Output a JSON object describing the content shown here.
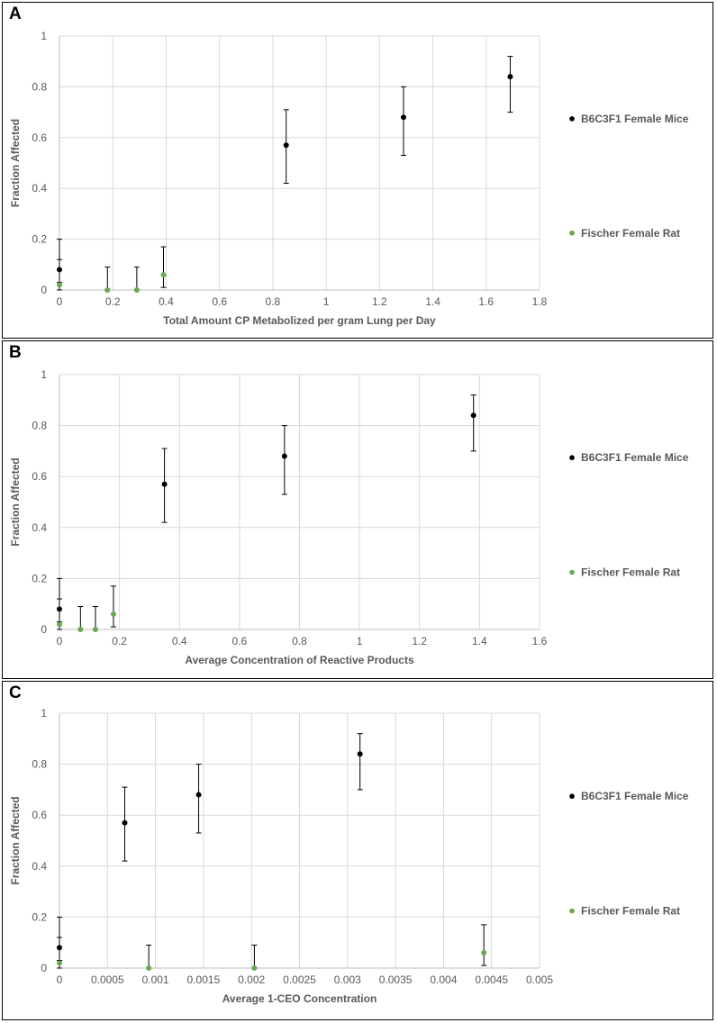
{
  "colors": {
    "mice": "#000000",
    "rat": "#6aa84f",
    "grid": "#d9d9d9",
    "axis": "#bfbfbf",
    "text": "#595959"
  },
  "chart_data": [
    {
      "panel": "A",
      "type": "scatter",
      "xlabel": "Total Amount CP Metabolized per gram Lung per Day",
      "ylabel": "Fraction Affected",
      "xlim": [
        0,
        1.8
      ],
      "ylim": [
        0,
        1
      ],
      "xticks": [
        "0",
        "0.2",
        "0.4",
        "0.6",
        "0.8",
        "1",
        "1.2",
        "1.4",
        "1.6",
        "1.8"
      ],
      "yticks": [
        "0",
        "0.2",
        "0.4",
        "0.6",
        "0.8",
        "1"
      ],
      "legend": [
        "B6C3F1 Female Mice",
        "Fischer Female Rat"
      ],
      "series": [
        {
          "name": "B6C3F1 Female Mice",
          "points": [
            {
              "x": 0,
              "y": 0.08,
              "lo": 0.03,
              "hi": 0.2
            },
            {
              "x": 0.85,
              "y": 0.57,
              "lo": 0.42,
              "hi": 0.71
            },
            {
              "x": 1.29,
              "y": 0.68,
              "lo": 0.53,
              "hi": 0.8
            },
            {
              "x": 1.69,
              "y": 0.84,
              "lo": 0.7,
              "hi": 0.92
            }
          ]
        },
        {
          "name": "Fischer Female Rat",
          "points": [
            {
              "x": 0,
              "y": 0.02,
              "lo": 0.0,
              "hi": 0.12
            },
            {
              "x": 0.18,
              "y": 0.0,
              "lo": 0.0,
              "hi": 0.09
            },
            {
              "x": 0.29,
              "y": 0.0,
              "lo": 0.0,
              "hi": 0.09
            },
            {
              "x": 0.39,
              "y": 0.06,
              "lo": 0.01,
              "hi": 0.17
            }
          ]
        }
      ]
    },
    {
      "panel": "B",
      "type": "scatter",
      "xlabel": "Average Concentration of Reactive Products",
      "ylabel": "Fraction Affected",
      "xlim": [
        0,
        1.6
      ],
      "ylim": [
        0,
        1
      ],
      "xticks": [
        "0",
        "0.2",
        "0.4",
        "0.6",
        "0.8",
        "1",
        "1.2",
        "1.4",
        "1.6"
      ],
      "yticks": [
        "0",
        "0.2",
        "0.4",
        "0.6",
        "0.8",
        "1"
      ],
      "legend": [
        "B6C3F1 Female Mice",
        "Fischer Female Rat"
      ],
      "series": [
        {
          "name": "B6C3F1 Female Mice",
          "points": [
            {
              "x": 0,
              "y": 0.08,
              "lo": 0.03,
              "hi": 0.2
            },
            {
              "x": 0.35,
              "y": 0.57,
              "lo": 0.42,
              "hi": 0.71
            },
            {
              "x": 0.75,
              "y": 0.68,
              "lo": 0.53,
              "hi": 0.8
            },
            {
              "x": 1.38,
              "y": 0.84,
              "lo": 0.7,
              "hi": 0.92
            }
          ]
        },
        {
          "name": "Fischer Female Rat",
          "points": [
            {
              "x": 0,
              "y": 0.02,
              "lo": 0.0,
              "hi": 0.12
            },
            {
              "x": 0.07,
              "y": 0.0,
              "lo": 0.0,
              "hi": 0.09
            },
            {
              "x": 0.12,
              "y": 0.0,
              "lo": 0.0,
              "hi": 0.09
            },
            {
              "x": 0.18,
              "y": 0.06,
              "lo": 0.01,
              "hi": 0.17
            }
          ]
        }
      ]
    },
    {
      "panel": "C",
      "type": "scatter",
      "xlabel": "Average 1-CEO Concentration",
      "ylabel": "Fraction Affected",
      "xlim": [
        0,
        0.005
      ],
      "ylim": [
        0,
        1
      ],
      "xticks": [
        "0",
        "0.0005",
        "0.001",
        "0.0015",
        "0.002",
        "0.0025",
        "0.003",
        "0.0035",
        "0.004",
        "0.0045",
        "0.005"
      ],
      "yticks": [
        "0",
        "0.2",
        "0.4",
        "0.6",
        "0.8",
        "1"
      ],
      "legend": [
        "B6C3F1 Female Mice",
        "Fischer Female Rat"
      ],
      "series": [
        {
          "name": "B6C3F1 Female Mice",
          "points": [
            {
              "x": 0,
              "y": 0.08,
              "lo": 0.03,
              "hi": 0.2
            },
            {
              "x": 0.00068,
              "y": 0.57,
              "lo": 0.42,
              "hi": 0.71
            },
            {
              "x": 0.00145,
              "y": 0.68,
              "lo": 0.53,
              "hi": 0.8
            },
            {
              "x": 0.00313,
              "y": 0.84,
              "lo": 0.7,
              "hi": 0.92
            }
          ]
        },
        {
          "name": "Fischer Female Rat",
          "points": [
            {
              "x": 0,
              "y": 0.02,
              "lo": 0.0,
              "hi": 0.12
            },
            {
              "x": 0.00093,
              "y": 0.0,
              "lo": 0.0,
              "hi": 0.09
            },
            {
              "x": 0.00203,
              "y": 0.0,
              "lo": 0.0,
              "hi": 0.09
            },
            {
              "x": 0.00442,
              "y": 0.06,
              "lo": 0.01,
              "hi": 0.17
            }
          ]
        }
      ]
    }
  ]
}
